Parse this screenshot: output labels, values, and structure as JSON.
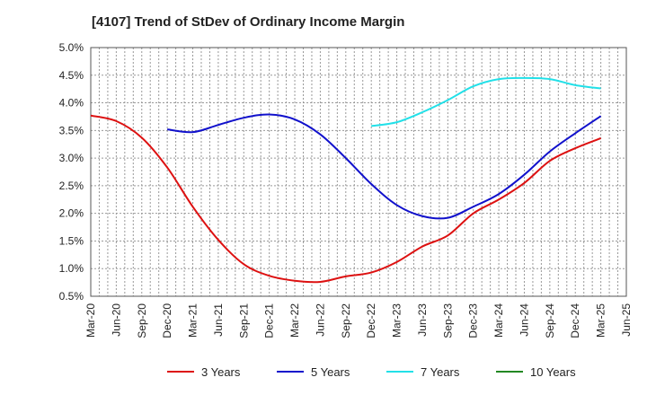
{
  "chart_data": {
    "type": "line",
    "title": "[4107]  Trend of StDev of Ordinary Income Margin",
    "xlabel": "",
    "ylabel": "",
    "ylim": [
      0.5,
      5.0
    ],
    "yticks": [
      "5.0%",
      "4.5%",
      "4.0%",
      "3.5%",
      "3.0%",
      "2.5%",
      "2.0%",
      "1.5%",
      "1.0%",
      "0.5%"
    ],
    "ytick_values": [
      5.0,
      4.5,
      4.0,
      3.5,
      3.0,
      2.5,
      2.0,
      1.5,
      1.0,
      0.5
    ],
    "xticks": [
      "Mar-20",
      "Jun-20",
      "Sep-20",
      "Dec-20",
      "Mar-21",
      "Jun-21",
      "Sep-21",
      "Dec-21",
      "Mar-22",
      "Jun-22",
      "Sep-22",
      "Dec-22",
      "Mar-23",
      "Jun-23",
      "Sep-23",
      "Dec-23",
      "Mar-24",
      "Jun-24",
      "Sep-24",
      "Dec-24",
      "Mar-25",
      "Jun-25"
    ],
    "grid": true,
    "legend_position": "bottom",
    "series": [
      {
        "name": "3 Years",
        "color": "#dd1111",
        "points": [
          [
            "Mar-20",
            3.77
          ],
          [
            "Jun-20",
            3.67
          ],
          [
            "Sep-20",
            3.37
          ],
          [
            "Dec-20",
            2.83
          ],
          [
            "Mar-21",
            2.12
          ],
          [
            "Jun-21",
            1.52
          ],
          [
            "Sep-21",
            1.08
          ],
          [
            "Dec-21",
            0.87
          ],
          [
            "Mar-22",
            0.78
          ],
          [
            "Jun-22",
            0.76
          ],
          [
            "Sep-22",
            0.86
          ],
          [
            "Dec-22",
            0.93
          ],
          [
            "Mar-23",
            1.12
          ],
          [
            "Jun-23",
            1.4
          ],
          [
            "Sep-23",
            1.6
          ],
          [
            "Dec-23",
            2.0
          ],
          [
            "Mar-24",
            2.25
          ],
          [
            "Jun-24",
            2.55
          ],
          [
            "Sep-24",
            2.95
          ],
          [
            "Dec-24",
            3.18
          ],
          [
            "Mar-25",
            3.36
          ]
        ]
      },
      {
        "name": "5 Years",
        "color": "#1111cc",
        "points": [
          [
            "Dec-20",
            3.52
          ],
          [
            "Mar-21",
            3.47
          ],
          [
            "Jun-21",
            3.6
          ],
          [
            "Sep-21",
            3.73
          ],
          [
            "Dec-21",
            3.79
          ],
          [
            "Mar-22",
            3.7
          ],
          [
            "Jun-22",
            3.43
          ],
          [
            "Sep-22",
            3.0
          ],
          [
            "Dec-22",
            2.53
          ],
          [
            "Mar-23",
            2.15
          ],
          [
            "Jun-23",
            1.95
          ],
          [
            "Sep-23",
            1.92
          ],
          [
            "Dec-23",
            2.12
          ],
          [
            "Mar-24",
            2.35
          ],
          [
            "Jun-24",
            2.7
          ],
          [
            "Sep-24",
            3.12
          ],
          [
            "Dec-24",
            3.45
          ],
          [
            "Mar-25",
            3.76
          ]
        ]
      },
      {
        "name": "7 Years",
        "color": "#22e0e8",
        "points": [
          [
            "Dec-22",
            3.58
          ],
          [
            "Mar-23",
            3.65
          ],
          [
            "Jun-23",
            3.83
          ],
          [
            "Sep-23",
            4.05
          ],
          [
            "Dec-23",
            4.3
          ],
          [
            "Mar-24",
            4.43
          ],
          [
            "Jun-24",
            4.45
          ],
          [
            "Sep-24",
            4.43
          ],
          [
            "Dec-24",
            4.32
          ],
          [
            "Mar-25",
            4.26
          ]
        ]
      },
      {
        "name": "10 Years",
        "color": "#228822",
        "points": []
      }
    ]
  }
}
